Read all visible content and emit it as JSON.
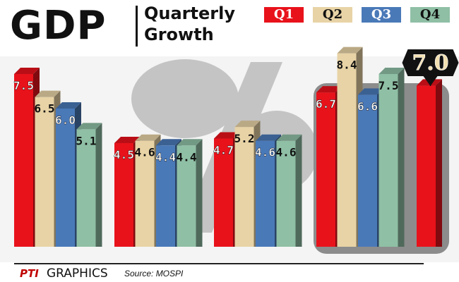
{
  "header": {
    "title": "GDP",
    "subtitle_line1": "Quarterly",
    "subtitle_line2": "Growth"
  },
  "legend": [
    {
      "label": "Q1",
      "color": "#e8121b",
      "text_color": "#ffffff"
    },
    {
      "label": "Q2",
      "color": "#e8d3a6",
      "text_color": "#111111"
    },
    {
      "label": "Q3",
      "color": "#4a79b8",
      "text_color": "#ffffff"
    },
    {
      "label": "Q4",
      "color": "#8fbfa5",
      "text_color": "#111111"
    }
  ],
  "chart_data": {
    "type": "bar",
    "title": "GDP Quarterly Growth",
    "xlabel": "",
    "ylabel": "",
    "ylim": [
      0,
      9
    ],
    "series_names": [
      "Q1",
      "Q2",
      "Q3",
      "Q4"
    ],
    "groups": [
      {
        "values": [
          7.5,
          6.5,
          6.0,
          5.1
        ]
      },
      {
        "values": [
          4.5,
          4.6,
          4.4,
          4.4
        ]
      },
      {
        "values": [
          4.7,
          5.2,
          4.6,
          4.6
        ]
      },
      {
        "values": [
          6.7,
          8.4,
          6.6,
          7.5
        ]
      },
      {
        "values": [
          7.0
        ],
        "highlight_label": "7.0"
      }
    ]
  },
  "footer": {
    "credit_logo": "PTI",
    "credit": "GRAPHICS",
    "source": "Source: MOSPI"
  }
}
